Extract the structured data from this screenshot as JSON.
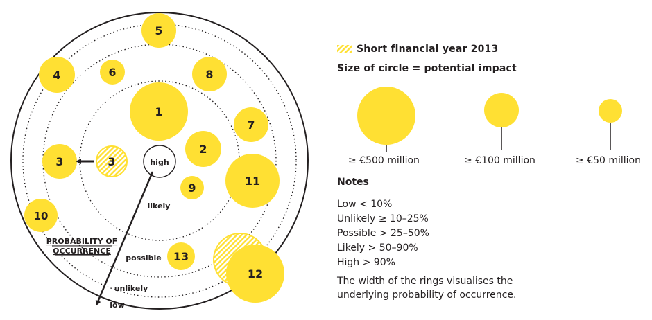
{
  "colors": {
    "risk_fill": "#ffe033",
    "ink": "#231f20",
    "background": "#ffffff"
  },
  "risks": [
    {
      "label": "1"
    },
    {
      "label": "2"
    },
    {
      "label": "3"
    },
    {
      "label": "3"
    },
    {
      "label": "4"
    },
    {
      "label": "5"
    },
    {
      "label": "6"
    },
    {
      "label": "7"
    },
    {
      "label": "8"
    },
    {
      "label": "9"
    },
    {
      "label": "10"
    },
    {
      "label": "11"
    },
    {
      "label": "12"
    },
    {
      "label": "13"
    }
  ],
  "rings": {
    "high": "high",
    "likely": "likely",
    "possible": "possible",
    "unlikely": "unlikely",
    "low": "low"
  },
  "axis_title_line1": "PROBABILITY OF",
  "axis_title_line2": "OCCURRENCE",
  "legend": {
    "short_year": "Short financial year 2013",
    "size_title": "Size of circle = potential impact",
    "sizes": [
      "≥ €500 million",
      "≥ €100 million",
      "≥ €50 million"
    ]
  },
  "notes": {
    "title": "Notes",
    "items": [
      "Low < 10%",
      "Unlikely ≥ 10–25%",
      "Possible > 25–50%",
      "Likely > 50–90%",
      "High > 90%"
    ],
    "text": "The width of the rings visualises the underlying probability of occurrence."
  }
}
